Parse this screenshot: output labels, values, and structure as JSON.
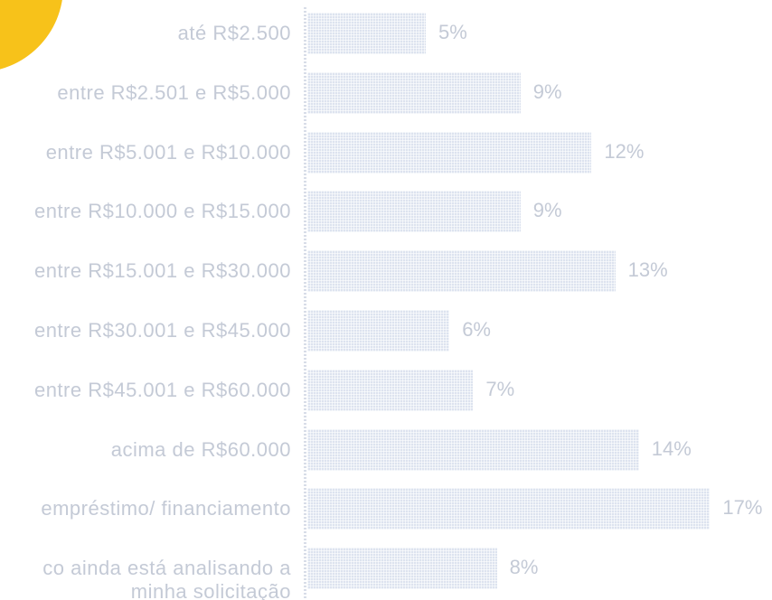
{
  "chart_data": {
    "type": "bar",
    "orientation": "horizontal",
    "categories": [
      "até R$2.500",
      "entre R$2.501 e R$5.000",
      "entre R$5.001 e R$10.000",
      "entre R$10.000 e R$15.000",
      "entre R$15.001 e R$30.000",
      "entre R$30.001 e R$45.000",
      "entre R$45.001 e R$60.000",
      "acima de R$60.000",
      "empréstimo/ financiamento",
      "co ainda está analisando a\nminha solicitação"
    ],
    "values": [
      5,
      9,
      12,
      9,
      13,
      6,
      7,
      14,
      17,
      8
    ],
    "value_labels": [
      "5%",
      "9%",
      "12%",
      "9%",
      "13%",
      "6%",
      "7%",
      "14%",
      "17%",
      "8%"
    ],
    "color": "#dde3ef"
  }
}
